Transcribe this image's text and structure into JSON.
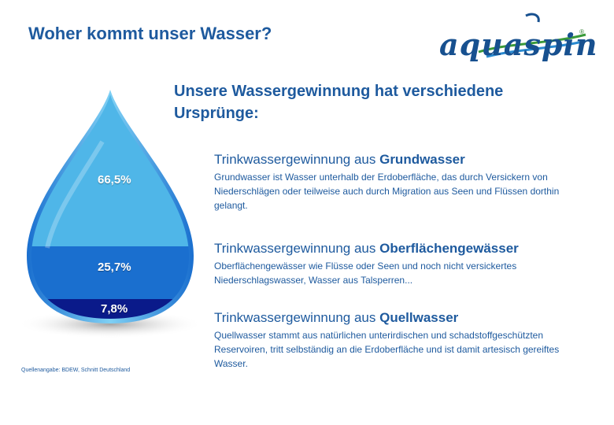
{
  "title": "Woher kommt unser Wasser?",
  "logo": {
    "text": "aquaspin",
    "registered": "®"
  },
  "subtitle": "Unsere Wassergewinnung hat verschiedene Ursprünge:",
  "drop": {
    "segments": [
      {
        "label": "66,5%",
        "value": 66.5,
        "color": "#4fb6e8"
      },
      {
        "label": "25,7%",
        "value": 25.7,
        "color": "#1a6fcf"
      },
      {
        "label": "7,8%",
        "value": 7.8,
        "color": "#0a1a8a"
      }
    ]
  },
  "source": "Quellenangabe: BDEW, Schnitt Deutschland",
  "sections": [
    {
      "head_prefix": "Trinkwassergewinnung aus ",
      "head_bold": "Grundwasser",
      "body": "Grundwasser ist Wasser unterhalb der Erdoberfläche, das durch Versickern von Niederschlägen oder teilweise auch durch Migration aus Seen und Flüssen dorthin gelangt."
    },
    {
      "head_prefix": "Trinkwassergewinnung aus ",
      "head_bold": "Oberflächengewässer",
      "body": "Oberflächengewässer wie Flüsse oder Seen und noch nicht versickertes Niederschlagswasser, Wasser aus Talsperren..."
    },
    {
      "head_prefix": "Trinkwassergewinnung aus ",
      "head_bold": "Quellwasser",
      "body": "Quellwasser stammt aus natürlichen unterirdischen und schadstoffgeschützten Reservoiren, tritt selbständig an die Erdoberfläche und ist damit artesisch gereiftes Wasser."
    }
  ]
}
